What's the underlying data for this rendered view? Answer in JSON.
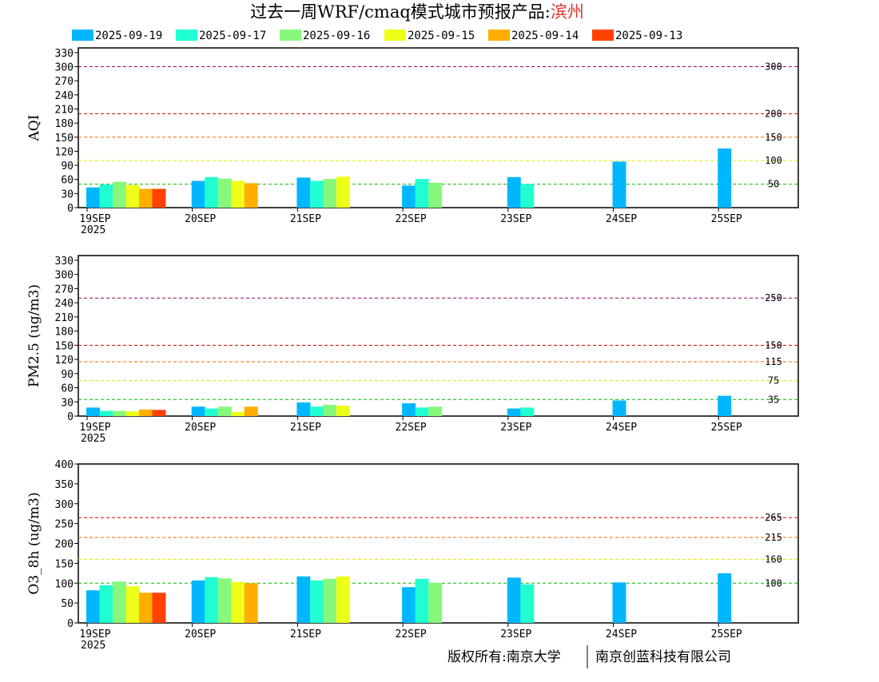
{
  "title": {
    "main": "过去一周WRF/cmaq模式城市预报产品:",
    "city": "滨州",
    "city_color": "#e03030"
  },
  "legend": [
    {
      "label": "2025-09-19",
      "color": "#00b7ff"
    },
    {
      "label": "2025-09-17",
      "color": "#21ffd2"
    },
    {
      "label": "2025-09-16",
      "color": "#86f97c"
    },
    {
      "label": "2025-09-15",
      "color": "#eeff19"
    },
    {
      "label": "2025-09-14",
      "color": "#ffae00"
    },
    {
      "label": "2025-09-13",
      "color": "#ff4200"
    }
  ],
  "x_ticks": [
    "19SEP",
    "20SEP",
    "21SEP",
    "22SEP",
    "23SEP",
    "24SEP",
    "25SEP"
  ],
  "x_year": "2025",
  "footer": {
    "left": "版权所有:南京大学",
    "right": "南京创蓝科技有限公司"
  },
  "chart_data": [
    {
      "type": "bar",
      "ylabel": "AQI",
      "ylim": [
        0,
        340
      ],
      "yticks": [
        0,
        30,
        60,
        90,
        120,
        150,
        180,
        210,
        240,
        270,
        300,
        330
      ],
      "categories": [
        "19SEP",
        "20SEP",
        "21SEP",
        "22SEP",
        "23SEP",
        "24SEP",
        "25SEP"
      ],
      "thresholds": [
        {
          "value": 300,
          "label": "300",
          "color": "#990066"
        },
        {
          "value": 200,
          "label": "200",
          "color": "#cc0000"
        },
        {
          "value": 150,
          "label": "150",
          "color": "#ff6600"
        },
        {
          "value": 100,
          "label": "100",
          "color": "#e6e600"
        },
        {
          "value": 50,
          "label": "50",
          "color": "#00bb00"
        }
      ],
      "series": [
        {
          "name": "2025-09-19",
          "values": [
            43,
            57,
            64,
            47,
            65,
            98,
            126
          ]
        },
        {
          "name": "2025-09-17",
          "values": [
            49,
            65,
            57,
            61,
            50,
            null,
            null
          ]
        },
        {
          "name": "2025-09-16",
          "values": [
            55,
            62,
            61,
            53,
            null,
            null,
            null
          ]
        },
        {
          "name": "2025-09-15",
          "values": [
            48,
            57,
            66,
            null,
            null,
            null,
            null
          ]
        },
        {
          "name": "2025-09-14",
          "values": [
            40,
            52,
            null,
            null,
            null,
            null,
            null
          ]
        },
        {
          "name": "2025-09-13",
          "values": [
            40,
            null,
            null,
            null,
            null,
            null,
            null
          ]
        }
      ]
    },
    {
      "type": "bar",
      "ylabel": "PM2.5 (ug/m3)",
      "ylim": [
        0,
        340
      ],
      "yticks": [
        0,
        30,
        60,
        90,
        120,
        150,
        180,
        210,
        240,
        270,
        300,
        330
      ],
      "categories": [
        "19SEP",
        "20SEP",
        "21SEP",
        "22SEP",
        "23SEP",
        "24SEP",
        "25SEP"
      ],
      "thresholds": [
        {
          "value": 250,
          "label": "250",
          "color": "#990066"
        },
        {
          "value": 150,
          "label": "150",
          "color": "#cc0000"
        },
        {
          "value": 115,
          "label": "115",
          "color": "#ff6600"
        },
        {
          "value": 75,
          "label": "75",
          "color": "#e6e600"
        },
        {
          "value": 35,
          "label": "35",
          "color": "#00bb00"
        }
      ],
      "series": [
        {
          "name": "2025-09-19",
          "values": [
            18,
            20,
            29,
            27,
            16,
            33,
            43
          ]
        },
        {
          "name": "2025-09-17",
          "values": [
            11,
            16,
            20,
            18,
            18,
            null,
            null
          ]
        },
        {
          "name": "2025-09-16",
          "values": [
            11,
            20,
            24,
            20,
            null,
            null,
            null
          ]
        },
        {
          "name": "2025-09-15",
          "values": [
            10,
            9,
            22,
            null,
            null,
            null,
            null
          ]
        },
        {
          "name": "2025-09-14",
          "values": [
            14,
            20,
            null,
            null,
            null,
            null,
            null
          ]
        },
        {
          "name": "2025-09-13",
          "values": [
            13,
            null,
            null,
            null,
            null,
            null,
            null
          ]
        }
      ]
    },
    {
      "type": "bar",
      "ylabel": "O3_8h (ug/m3)",
      "ylim": [
        0,
        400
      ],
      "yticks": [
        0,
        50,
        100,
        150,
        200,
        250,
        300,
        350,
        400
      ],
      "categories": [
        "19SEP",
        "20SEP",
        "21SEP",
        "22SEP",
        "23SEP",
        "24SEP",
        "25SEP"
      ],
      "thresholds": [
        {
          "value": 265,
          "label": "265",
          "color": "#cc0000"
        },
        {
          "value": 215,
          "label": "215",
          "color": "#ff6600"
        },
        {
          "value": 160,
          "label": "160",
          "color": "#e6e600"
        },
        {
          "value": 100,
          "label": "100",
          "color": "#00bb00"
        }
      ],
      "series": [
        {
          "name": "2025-09-19",
          "values": [
            82,
            107,
            117,
            90,
            114,
            102,
            125
          ]
        },
        {
          "name": "2025-09-17",
          "values": [
            95,
            115,
            107,
            111,
            97,
            null,
            null
          ]
        },
        {
          "name": "2025-09-16",
          "values": [
            104,
            112,
            111,
            101,
            null,
            null,
            null
          ]
        },
        {
          "name": "2025-09-15",
          "values": [
            92,
            103,
            117,
            null,
            null,
            null,
            null
          ]
        },
        {
          "name": "2025-09-14",
          "values": [
            76,
            100,
            null,
            null,
            null,
            null,
            null
          ]
        },
        {
          "name": "2025-09-13",
          "values": [
            76,
            null,
            null,
            null,
            null,
            null,
            null
          ]
        }
      ]
    }
  ]
}
